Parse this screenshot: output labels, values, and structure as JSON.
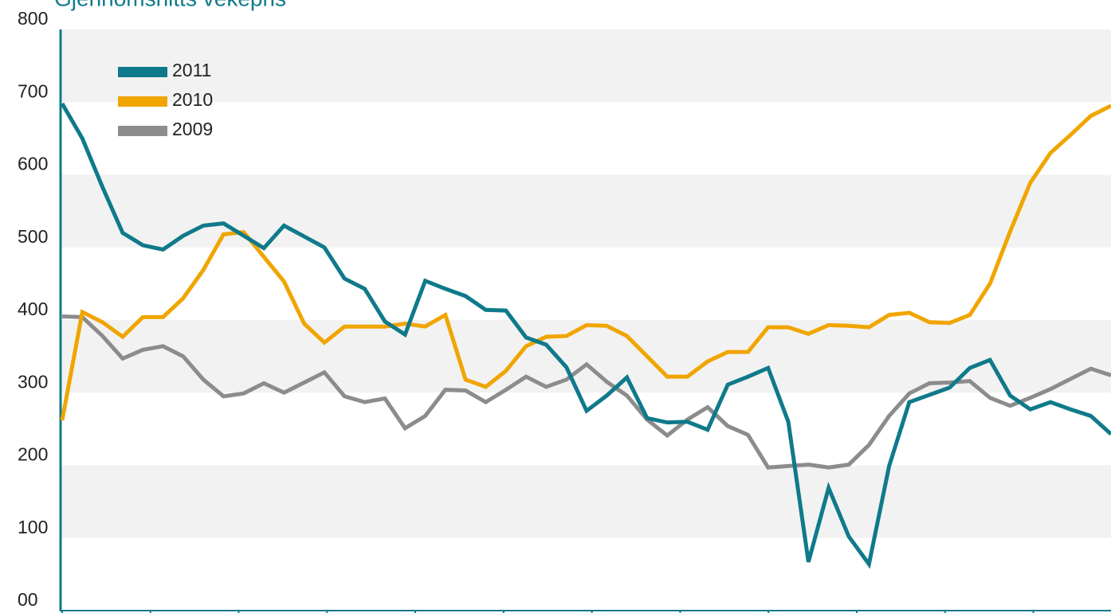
{
  "chart_data": {
    "type": "line",
    "title": "Gjennomsnitts vekepris",
    "categories": [
      null,
      null,
      null,
      null,
      null,
      null,
      null,
      null,
      null,
      null,
      null,
      null,
      null,
      null,
      null,
      null,
      null,
      null,
      null,
      null,
      null,
      null,
      null,
      null,
      null,
      null,
      null,
      null,
      null,
      null,
      null,
      null,
      null,
      null,
      null,
      null,
      null,
      null,
      null,
      null,
      null,
      null,
      null,
      null,
      null,
      null,
      null,
      null,
      null,
      null,
      null,
      null,
      null
    ],
    "series": [
      {
        "name": "2011",
        "color": "#0f7a8a",
        "values": [
          698,
          650,
          583,
          520,
          503,
          497,
          516,
          530,
          533,
          516,
          499,
          530,
          515,
          500,
          457,
          443,
          398,
          380,
          454,
          443,
          433,
          414,
          413,
          376,
          366,
          335,
          275,
          296,
          321,
          265,
          259,
          260,
          249,
          311,
          322,
          334,
          260,
          67,
          169,
          102,
          64,
          199,
          287,
          297,
          307,
          334,
          345,
          296,
          277,
          287,
          277,
          268,
          243
        ]
      },
      {
        "name": "2010",
        "color": "#f0a500",
        "values": [
          262,
          411,
          397,
          377,
          404,
          404,
          430,
          469,
          518,
          521,
          487,
          453,
          395,
          369,
          391,
          391,
          391,
          395,
          391,
          407,
          318,
          308,
          330,
          364,
          377,
          378,
          393,
          392,
          378,
          350,
          322,
          322,
          343,
          356,
          356,
          390,
          390,
          381,
          393,
          392,
          390,
          407,
          410,
          397,
          396,
          407,
          450,
          522,
          589,
          630,
          655,
          681,
          695
        ]
      },
      {
        "name": "2009",
        "color": "#8c8c8c",
        "values": [
          405,
          404,
          378,
          347,
          359,
          364,
          350,
          318,
          295,
          299,
          313,
          300,
          314,
          328,
          295,
          287,
          292,
          251,
          268,
          304,
          303,
          287,
          304,
          322,
          308,
          318,
          339,
          315,
          296,
          263,
          241,
          263,
          280,
          254,
          242,
          197,
          199,
          201,
          197,
          201,
          228,
          268,
          299,
          313,
          314,
          316,
          293,
          282,
          293,
          305,
          319,
          333,
          324
        ]
      }
    ],
    "ylim": [
      0,
      800
    ],
    "yticks": [
      {
        "value": 0,
        "label": "00"
      },
      100,
      200,
      300,
      400,
      500,
      600,
      700,
      800
    ],
    "grid": true,
    "legend": "upper-left"
  }
}
